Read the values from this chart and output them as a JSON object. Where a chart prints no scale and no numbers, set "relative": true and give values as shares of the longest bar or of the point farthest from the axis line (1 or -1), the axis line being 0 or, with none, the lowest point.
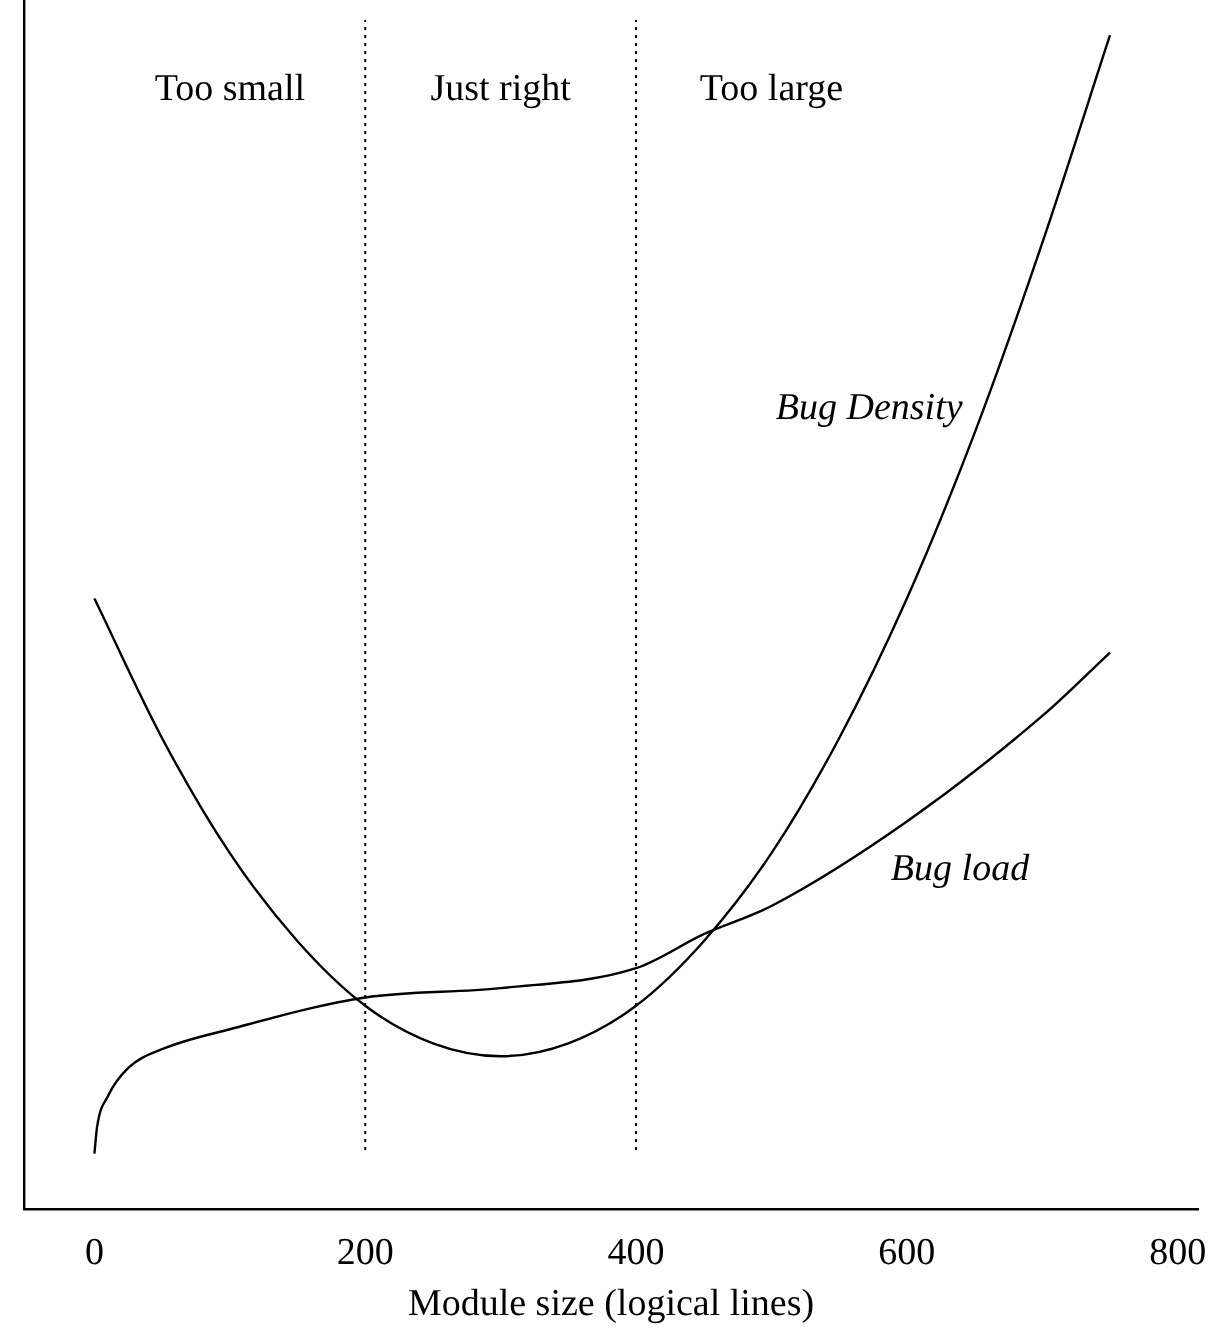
{
  "chart_data": {
    "type": "line",
    "relative": true,
    "xlabel": "Module size (logical lines)",
    "xlim": [
      -52,
      815
    ],
    "xticks": [
      0,
      200,
      400,
      600,
      800
    ],
    "grid": false,
    "legend": false,
    "marker": "none",
    "series": [
      {
        "name": "Bug Density",
        "color": "#000000",
        "x": [
          0,
          50,
          100,
          150,
          200,
          250,
          300,
          350,
          400,
          450,
          500,
          550,
          600,
          650,
          700,
          750
        ],
        "values": [
          0.52,
          0.401,
          0.303,
          0.228,
          0.173,
          0.141,
          0.13,
          0.141,
          0.173,
          0.228,
          0.303,
          0.401,
          0.52,
          0.661,
          0.823,
          1.0
        ]
      },
      {
        "name": "Bug load",
        "color": "#000000",
        "x": [
          0,
          2,
          10,
          25,
          50,
          100,
          200,
          300,
          400,
          450,
          500,
          600,
          700,
          750
        ],
        "values": [
          0.047,
          0.07,
          0.096,
          0.12,
          0.136,
          0.153,
          0.18,
          0.188,
          0.205,
          0.234,
          0.258,
          0.33,
          0.42,
          0.474
        ]
      }
    ],
    "ref_lines": [
      {
        "axis": "x",
        "value": 200,
        "line_style": "dotted",
        "color": "#000000"
      },
      {
        "axis": "x",
        "value": 400,
        "line_style": "dotted",
        "color": "#000000"
      }
    ],
    "annotations": [
      "Too small",
      "Just right",
      "Too large"
    ]
  }
}
